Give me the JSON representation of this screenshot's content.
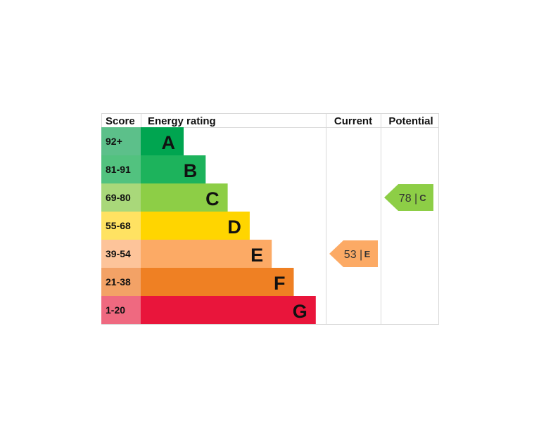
{
  "headers": {
    "score": "Score",
    "rating": "Energy rating",
    "current": "Current",
    "potential": "Potential"
  },
  "chart_data": {
    "type": "bar",
    "bands": [
      {
        "letter": "A",
        "range": "92+",
        "color": "#00a550",
        "score_color": "#5cc08a"
      },
      {
        "letter": "B",
        "range": "81-91",
        "color": "#1db35c",
        "score_color": "#52c27f"
      },
      {
        "letter": "C",
        "range": "69-80",
        "color": "#8dce46",
        "score_color": "#a9d87a"
      },
      {
        "letter": "D",
        "range": "55-68",
        "color": "#ffd500",
        "score_color": "#ffe262"
      },
      {
        "letter": "E",
        "range": "39-54",
        "color": "#fcaa65",
        "score_color": "#fdc49a"
      },
      {
        "letter": "F",
        "range": "21-38",
        "color": "#ef8023",
        "score_color": "#f3a266"
      },
      {
        "letter": "G",
        "range": "1-20",
        "color": "#e9153b",
        "score_color": "#ef6980"
      }
    ],
    "current": {
      "value": 53,
      "letter": "E",
      "label": "53 |",
      "color": "#fcaa65"
    },
    "potential": {
      "value": 78,
      "letter": "C",
      "label": "78 |",
      "color": "#8dce46"
    }
  }
}
